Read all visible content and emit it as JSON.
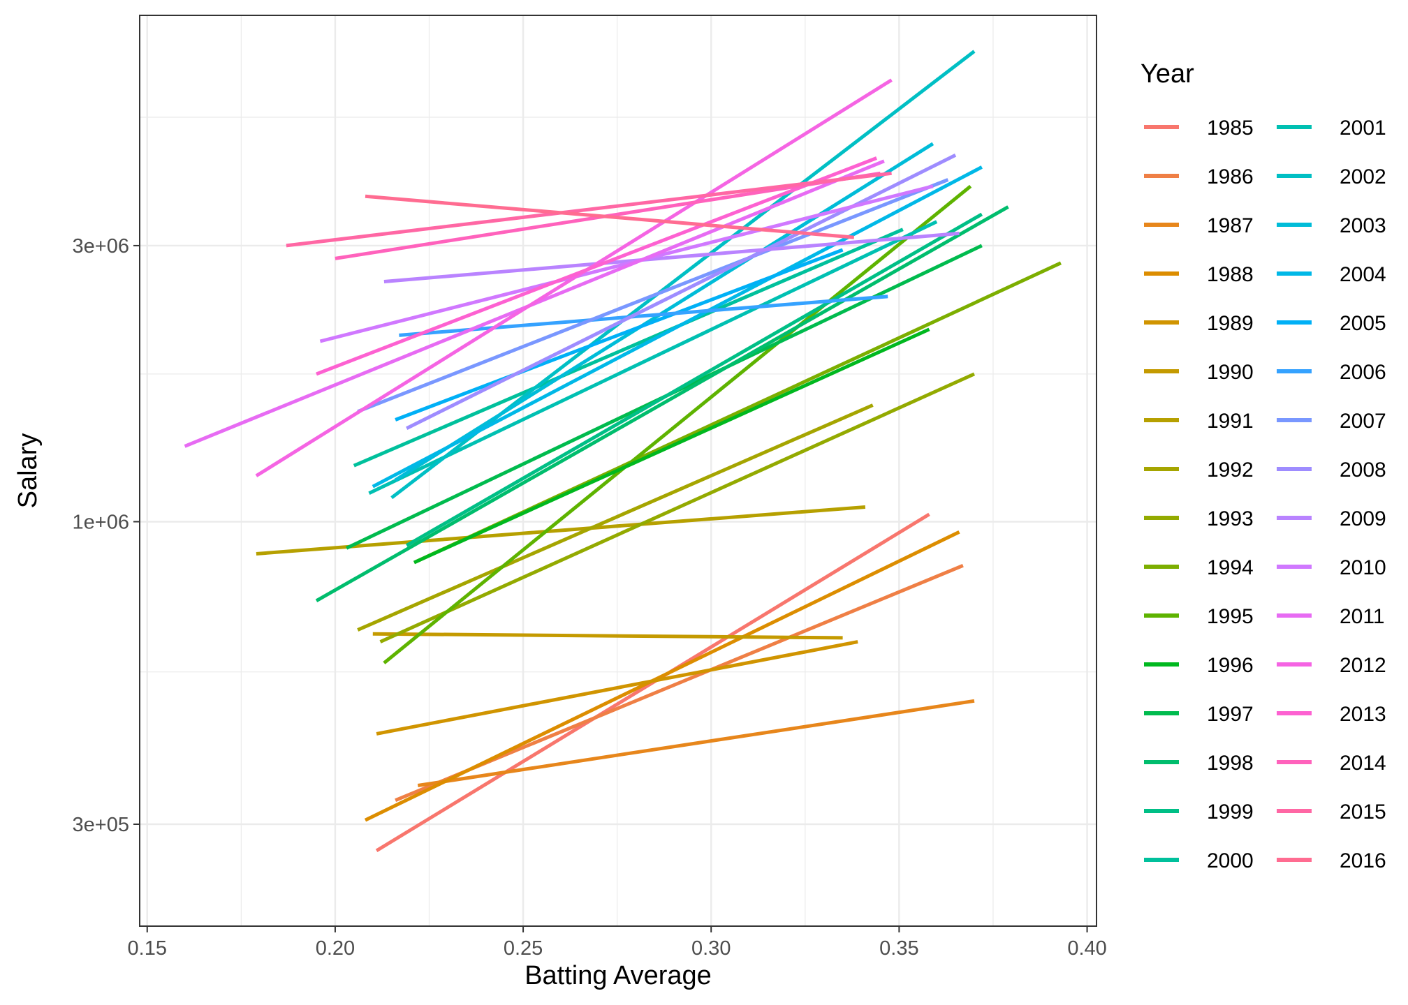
{
  "chart_data": {
    "type": "line",
    "title": "",
    "xlabel": "Batting Average",
    "ylabel": "Salary",
    "xlim": [
      0.148,
      0.4025
    ],
    "ylim": [
      200000,
      7500000
    ],
    "y_scale": "log",
    "x_ticks": [
      0.15,
      0.2,
      0.25,
      0.3,
      0.35,
      0.4
    ],
    "x_tick_labels": [
      "0.15",
      "0.20",
      "0.25",
      "0.30",
      "0.35",
      "0.40"
    ],
    "y_ticks": [
      300000,
      1000000,
      3000000
    ],
    "y_tick_labels": [
      "3e+05",
      "1e+06",
      "3e+06"
    ],
    "y_minor_gridlines": [
      550000,
      1800000,
      5000000
    ],
    "grid": true,
    "legend": {
      "title": "Year",
      "position": "right",
      "columns": 2
    },
    "series": [
      {
        "name": "1985",
        "color": "#F8766D",
        "x": [
          0.211,
          0.358
        ],
        "y": [
          270000,
          1030000
        ]
      },
      {
        "name": "1986",
        "color": "#EF7F45",
        "x": [
          0.216,
          0.367
        ],
        "y": [
          330000,
          840000
        ]
      },
      {
        "name": "1987",
        "color": "#E7861B",
        "x": [
          0.222,
          0.37
        ],
        "y": [
          350000,
          490000
        ]
      },
      {
        "name": "1988",
        "color": "#DC8D00",
        "x": [
          0.208,
          0.366
        ],
        "y": [
          305000,
          960000
        ]
      },
      {
        "name": "1989",
        "color": "#D09400",
        "x": [
          0.211,
          0.339
        ],
        "y": [
          430000,
          620000
        ]
      },
      {
        "name": "1990",
        "color": "#C49A00",
        "x": [
          0.21,
          0.335
        ],
        "y": [
          640000,
          630000
        ]
      },
      {
        "name": "1991",
        "color": "#B6A000",
        "x": [
          0.179,
          0.341
        ],
        "y": [
          880000,
          1060000
        ]
      },
      {
        "name": "1992",
        "color": "#A5A500",
        "x": [
          0.206,
          0.343
        ],
        "y": [
          650000,
          1590000
        ]
      },
      {
        "name": "1993",
        "color": "#93AA00",
        "x": [
          0.212,
          0.37
        ],
        "y": [
          620000,
          1800000
        ]
      },
      {
        "name": "1994",
        "color": "#7CAE00",
        "x": [
          0.221,
          0.393
        ],
        "y": [
          850000,
          2800000
        ]
      },
      {
        "name": "1995",
        "color": "#5EB300",
        "x": [
          0.213,
          0.369
        ],
        "y": [
          570000,
          3800000
        ]
      },
      {
        "name": "1996",
        "color": "#00B81F",
        "x": [
          0.221,
          0.358
        ],
        "y": [
          850000,
          2150000
        ]
      },
      {
        "name": "1997",
        "color": "#00BB4E",
        "x": [
          0.203,
          0.372
        ],
        "y": [
          900000,
          3000000
        ]
      },
      {
        "name": "1998",
        "color": "#00BD6D",
        "x": [
          0.195,
          0.379
        ],
        "y": [
          730000,
          3500000
        ]
      },
      {
        "name": "1999",
        "color": "#00BF86",
        "x": [
          0.219,
          0.372
        ],
        "y": [
          910000,
          3400000
        ]
      },
      {
        "name": "2000",
        "color": "#00C09C",
        "x": [
          0.205,
          0.351
        ],
        "y": [
          1250000,
          3200000
        ]
      },
      {
        "name": "2001",
        "color": "#00C0B2",
        "x": [
          0.209,
          0.36
        ],
        "y": [
          1120000,
          3300000
        ]
      },
      {
        "name": "2002",
        "color": "#00BFC4",
        "x": [
          0.215,
          0.37
        ],
        "y": [
          1100000,
          6500000
        ]
      },
      {
        "name": "2003",
        "color": "#00BCD8",
        "x": [
          0.216,
          0.359
        ],
        "y": [
          1180000,
          4500000
        ]
      },
      {
        "name": "2004",
        "color": "#00B8E7",
        "x": [
          0.21,
          0.372
        ],
        "y": [
          1150000,
          4100000
        ]
      },
      {
        "name": "2005",
        "color": "#00B0F6",
        "x": [
          0.216,
          0.335
        ],
        "y": [
          1500000,
          2950000
        ]
      },
      {
        "name": "2006",
        "color": "#35A2FF",
        "x": [
          0.217,
          0.347
        ],
        "y": [
          2100000,
          2450000
        ]
      },
      {
        "name": "2007",
        "color": "#7997FF",
        "x": [
          0.206,
          0.363
        ],
        "y": [
          1550000,
          3900000
        ]
      },
      {
        "name": "2008",
        "color": "#9E8CFF",
        "x": [
          0.219,
          0.365
        ],
        "y": [
          1450000,
          4300000
        ]
      },
      {
        "name": "2009",
        "color": "#B983FF",
        "x": [
          0.213,
          0.366
        ],
        "y": [
          2600000,
          3150000
        ]
      },
      {
        "name": "2010",
        "color": "#D078FF",
        "x": [
          0.196,
          0.359
        ],
        "y": [
          2050000,
          3800000
        ]
      },
      {
        "name": "2011",
        "color": "#E76BF3",
        "x": [
          0.16,
          0.346
        ],
        "y": [
          1350000,
          4200000
        ]
      },
      {
        "name": "2012",
        "color": "#F564E3",
        "x": [
          0.179,
          0.348
        ],
        "y": [
          1200000,
          5800000
        ]
      },
      {
        "name": "2013",
        "color": "#FD61D1",
        "x": [
          0.195,
          0.344
        ],
        "y": [
          1800000,
          4250000
        ]
      },
      {
        "name": "2014",
        "color": "#FF62BC",
        "x": [
          0.2,
          0.345
        ],
        "y": [
          2850000,
          4000000
        ]
      },
      {
        "name": "2015",
        "color": "#FF67A4",
        "x": [
          0.187,
          0.348
        ],
        "y": [
          3000000,
          4000000
        ]
      },
      {
        "name": "2016",
        "color": "#FF6C91",
        "x": [
          0.208,
          0.338
        ],
        "y": [
          3650000,
          3100000
        ]
      }
    ]
  }
}
